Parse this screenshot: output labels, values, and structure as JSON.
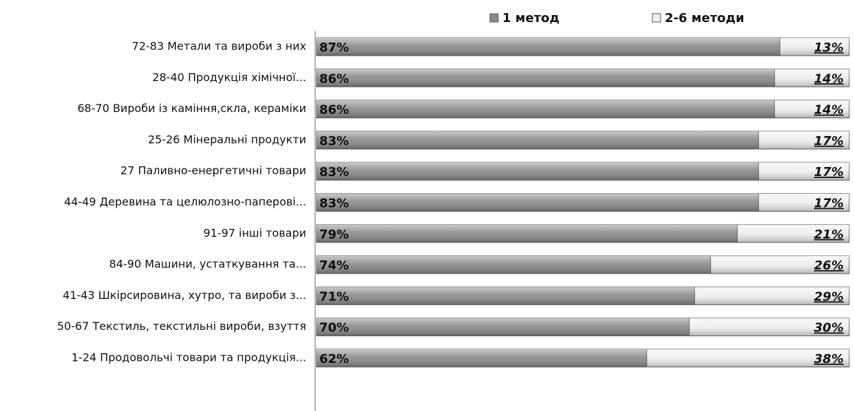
{
  "chart_data": {
    "type": "stacked-bar-horizontal",
    "categories": [
      "72-83 Метали та вироби з них",
      "28-40 Продукція хімічної...",
      "68-70 Вироби із каміння,скла, кераміки",
      "25-26 Мінеральні продукти",
      "27 Паливно-енергетичні товари",
      "44-49 Деревина та целюлозно-паперові...",
      "91-97 інші товари",
      "84-90 Машини, устаткування та...",
      "41-43 Шкірсировина, хутро, та вироби з...",
      "50-67 Текстиль, текстильні вироби, взуття",
      "1-24 Продовольчі товари та продукція..."
    ],
    "series": [
      {
        "name": "1 метод",
        "color": "#8a8a8a",
        "values": [
          87,
          86,
          86,
          83,
          83,
          83,
          79,
          74,
          71,
          70,
          62
        ],
        "value_labels": [
          "87%",
          "86%",
          "86%",
          "83%",
          "83%",
          "83%",
          "79%",
          "74%",
          "71%",
          "70%",
          "62%"
        ]
      },
      {
        "name": "2-6 методи",
        "color": "#efefef",
        "values": [
          13,
          14,
          14,
          17,
          17,
          17,
          21,
          26,
          29,
          30,
          38
        ],
        "value_labels": [
          "13%",
          "14%",
          "14%",
          "17%",
          "17%",
          "17%",
          "21%",
          "26%",
          "29%",
          "30%",
          "38%"
        ]
      }
    ],
    "legend": "top"
  }
}
